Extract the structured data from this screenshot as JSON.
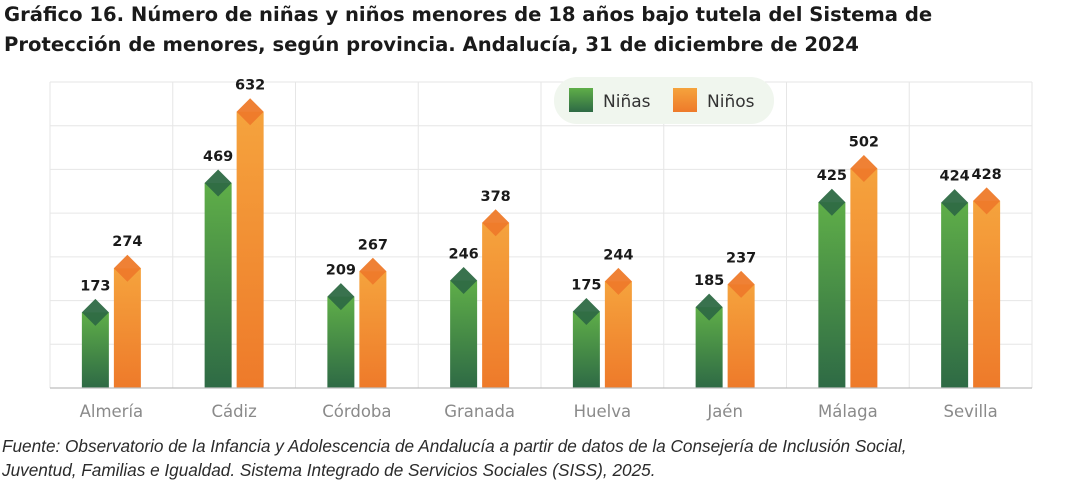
{
  "title": {
    "line1": "Gráfico 16. Número de niñas y niños menores de 18 años bajo tutela del Sistema de",
    "line2": "Protección de menores, según provincia. Andalucía, 31 de diciembre de 2024"
  },
  "source": {
    "line1": "Fuente: Observatorio de la Infancia y Adolescencia de Andalucía a partir de datos de la Consejería de Inclusión Social,",
    "line2": "Juventud, Familias e Igualdad. Sistema Integrado de Servicios Sociales (SISS), 2025."
  },
  "colors": {
    "ninas_top": "#5fae48",
    "ninas_bottom": "#2e6a45",
    "ninos_top": "#f5a33d",
    "ninos_bottom": "#ee7a2a",
    "grid": "#e6e6e6",
    "legend_bg": "#f0f6ee",
    "label": "#1a1a1a",
    "tick": "#8a8a8a"
  },
  "chart_data": {
    "type": "bar",
    "categories": [
      "Almería",
      "Cádiz",
      "Córdoba",
      "Granada",
      "Huelva",
      "Jaén",
      "Málaga",
      "Sevilla"
    ],
    "series": [
      {
        "name": "Niñas",
        "values": [
          173,
          469,
          209,
          246,
          175,
          185,
          425,
          424
        ]
      },
      {
        "name": "Niños",
        "values": [
          274,
          632,
          267,
          378,
          244,
          237,
          502,
          428
        ]
      }
    ],
    "ylim": [
      0,
      700
    ],
    "grid": true,
    "legend": "top-right",
    "data_labels": true
  }
}
